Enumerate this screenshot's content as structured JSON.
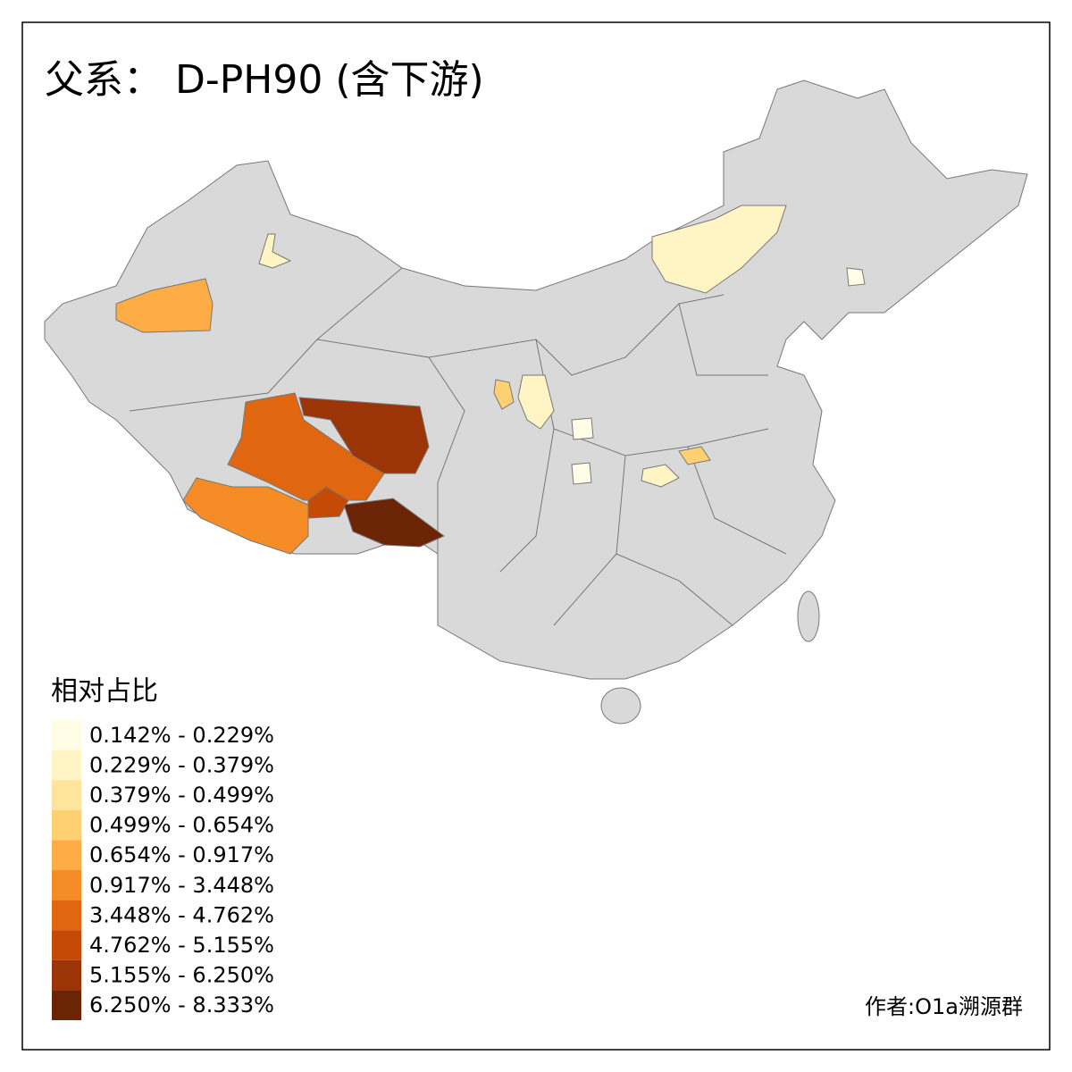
{
  "title": "父系： D-PH90 (含下游)",
  "legend": {
    "title": "相对占比",
    "items": [
      {
        "label": "0.142% - 0.229%",
        "color": "#fffde6"
      },
      {
        "label": "0.229% - 0.379%",
        "color": "#fff5c4"
      },
      {
        "label": "0.379% - 0.499%",
        "color": "#ffe59c"
      },
      {
        "label": "0.499% - 0.654%",
        "color": "#fed071"
      },
      {
        "label": "0.654% - 0.917%",
        "color": "#feac45"
      },
      {
        "label": "0.917% - 3.448%",
        "color": "#f68c26"
      },
      {
        "label": "3.448% - 4.762%",
        "color": "#e06710"
      },
      {
        "label": "4.762% - 5.155%",
        "color": "#c54a06"
      },
      {
        "label": "5.155% - 6.250%",
        "color": "#9b3406"
      },
      {
        "label": "6.250% - 8.333%",
        "color": "#6b2506"
      }
    ]
  },
  "credit": "作者:O1a溯源群"
}
